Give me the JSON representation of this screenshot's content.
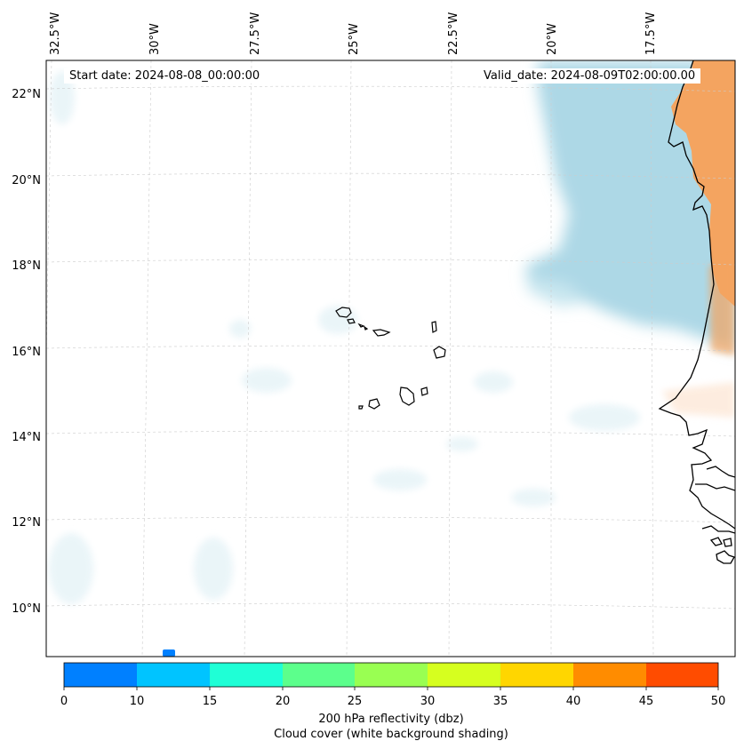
{
  "annotations": {
    "start_date": "Start date: 2024-08-08_00:00:00",
    "valid_date": "Valid_date: 2024-08-09T02:00:00.00"
  },
  "longitude_labels": [
    "32.5°W",
    "30°W",
    "27.5°W",
    "25°W",
    "22.5°W",
    "20°W",
    "17.5°W"
  ],
  "latitude_labels": [
    "22°N",
    "20°N",
    "18°N",
    "16°N",
    "14°N",
    "12°N",
    "10°N"
  ],
  "colorbar": {
    "label_line1": "200 hPa reflectivity (dbz)",
    "label_line2": "Cloud cover (white background shading)",
    "ticks": [
      "0",
      "10",
      "15",
      "20",
      "25",
      "30",
      "35",
      "40",
      "45",
      "50"
    ],
    "colors": [
      "#0080ff",
      "#00c4ff",
      "#1fffd6",
      "#5cff8c",
      "#99ff52",
      "#d6ff1f",
      "#ffd600",
      "#ff8c00",
      "#ff4c00"
    ]
  },
  "colors": {
    "cloud_cover": "#a9d8e6",
    "land_shading": "#f4a460",
    "coastline": "#000000",
    "gridline": "#cccccc"
  }
}
